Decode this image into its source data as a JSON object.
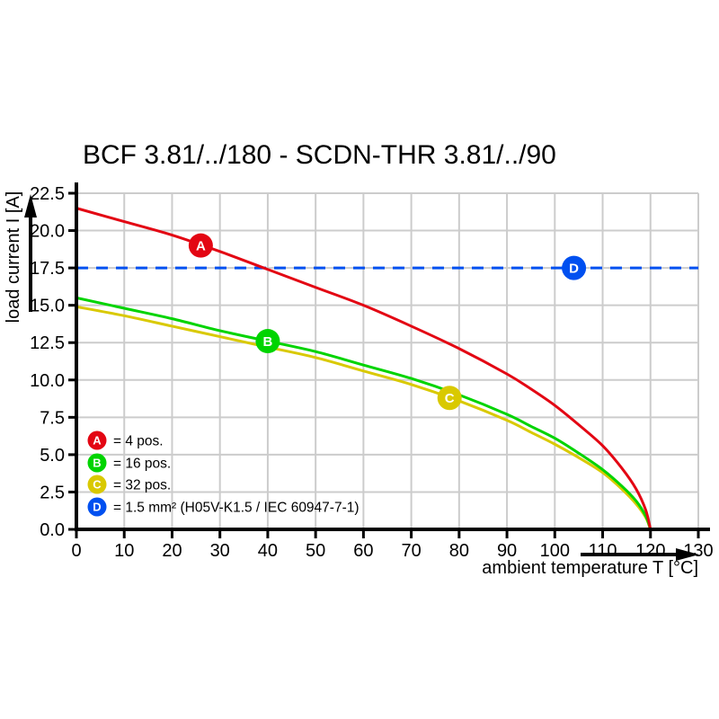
{
  "title": "BCF 3.81/../180 - SCDN-THR 3.81/../90",
  "colors": {
    "background": "#ffffff",
    "grid": "#cccccc",
    "axis": "#000000",
    "series_a_red": "#e30613",
    "series_b_green": "#00d400",
    "series_c_yellow": "#d9c900",
    "series_d_blue": "#0050f0",
    "marker_letter": "#ffffff",
    "text": "#000000"
  },
  "chart_data": {
    "type": "line",
    "title": "BCF 3.81/../180 - SCDN-THR 3.81/../90",
    "xlabel": "ambient temperature T [°C]",
    "ylabel": "load current I [A]",
    "xlim": [
      0,
      130
    ],
    "ylim": [
      0,
      22.5
    ],
    "grid": true,
    "legend_position": "bottom-left-inside",
    "xticks": [
      0,
      10,
      20,
      30,
      40,
      50,
      60,
      70,
      80,
      90,
      100,
      110,
      120,
      130
    ],
    "ytick_labels": [
      "0.0",
      "2.5",
      "5.0",
      "7.5",
      "10.0",
      "12.5",
      "15.0",
      "17.5",
      "20.0",
      "22.5"
    ],
    "series": [
      {
        "name": "A",
        "label": "= 4 pos.",
        "color": "#e30613",
        "style": "solid",
        "x": [
          0,
          10,
          20,
          30,
          40,
          50,
          60,
          70,
          80,
          90,
          95,
          100,
          105,
          110,
          114,
          117,
          119,
          120
        ],
        "y": [
          21.5,
          20.6,
          19.7,
          18.6,
          17.4,
          16.2,
          15.0,
          13.6,
          12.1,
          10.4,
          9.4,
          8.3,
          7.0,
          5.6,
          4.1,
          2.7,
          1.3,
          0
        ],
        "marker": {
          "letter": "A",
          "x": 26,
          "y": 19.0
        }
      },
      {
        "name": "B",
        "label": "= 16 pos.",
        "color": "#00d400",
        "style": "solid",
        "x": [
          0,
          10,
          20,
          30,
          40,
          50,
          60,
          70,
          80,
          90,
          95,
          100,
          105,
          110,
          114,
          117,
          119,
          120
        ],
        "y": [
          15.5,
          14.8,
          14.1,
          13.3,
          12.6,
          11.9,
          11.0,
          10.1,
          9.0,
          7.7,
          6.9,
          6.1,
          5.1,
          4.0,
          2.9,
          1.9,
          0.9,
          0
        ],
        "marker": {
          "letter": "B",
          "x": 40,
          "y": 12.6
        }
      },
      {
        "name": "C",
        "label": "= 32 pos.",
        "color": "#d9c900",
        "style": "solid",
        "x": [
          0,
          10,
          20,
          30,
          40,
          50,
          60,
          70,
          80,
          90,
          95,
          100,
          105,
          110,
          114,
          117,
          119,
          120
        ],
        "y": [
          14.9,
          14.3,
          13.6,
          12.9,
          12.2,
          11.5,
          10.6,
          9.7,
          8.6,
          7.3,
          6.5,
          5.7,
          4.8,
          3.8,
          2.7,
          1.7,
          0.8,
          0
        ],
        "marker": {
          "letter": "C",
          "x": 78,
          "y": 8.8
        }
      },
      {
        "name": "D",
        "label": "= 1.5 mm² (H05V-K1.5 / IEC 60947-7-1)",
        "color": "#0050f0",
        "style": "dashed-hline",
        "value": 17.5,
        "marker": {
          "letter": "D",
          "x": 104,
          "y": 17.5
        }
      }
    ]
  }
}
